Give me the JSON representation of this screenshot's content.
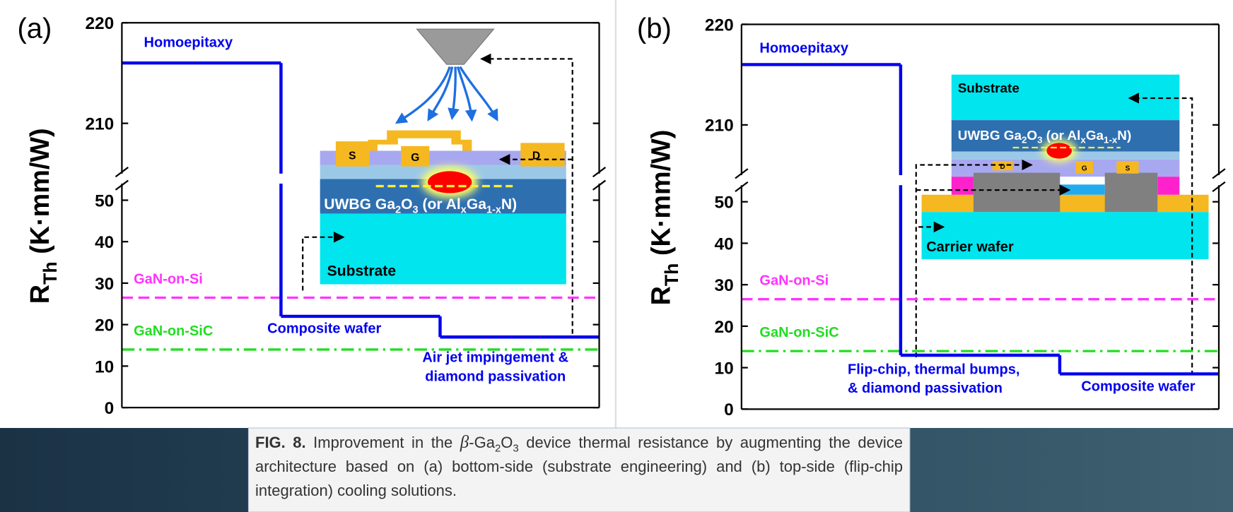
{
  "chart_data": [
    {
      "type": "step",
      "panel_label": "(a)",
      "ylabel": [
        "R",
        "Th",
        " (K·mm/W)"
      ],
      "ylim": [
        0,
        220
      ],
      "ybreak": [
        54,
        205
      ],
      "yticks": [
        0,
        10,
        20,
        30,
        40,
        50,
        210,
        220
      ],
      "series": [
        {
          "color": "#0000ee",
          "values": [
            216,
            22,
            17
          ]
        }
      ],
      "stage_labels": [
        [
          "Homoepitaxy"
        ],
        [
          "Composite wafer"
        ],
        [
          "Air jet impingement &",
          "diamond passivation"
        ]
      ],
      "reference_lines": [
        {
          "name": "GaN-on-Si",
          "value": 26.5,
          "color": "#ff33ff",
          "style": "dashed"
        },
        {
          "name": "GaN-on-SiC",
          "value": 14,
          "color": "#22dd22",
          "style": "dashdot"
        }
      ],
      "inset_labels": {
        "source": "S",
        "gate": "G",
        "drain": "D",
        "substrate": "Substrate",
        "channel": [
          "UWBG Ga",
          "2",
          "O",
          "3",
          " (or Al",
          "x",
          "Ga",
          "1-x",
          "N)"
        ]
      }
    },
    {
      "type": "step",
      "panel_label": "(b)",
      "ylabel": [
        "R",
        "Th",
        " (K·mm/W)"
      ],
      "ylim": [
        0,
        220
      ],
      "ybreak": [
        54,
        205
      ],
      "yticks": [
        0,
        10,
        20,
        30,
        40,
        50,
        210,
        220
      ],
      "series": [
        {
          "color": "#0000ee",
          "values": [
            216,
            13,
            8.5
          ]
        }
      ],
      "stage_labels": [
        [
          "Homoepitaxy"
        ],
        [
          "Flip-chip, thermal bumps,",
          "& diamond passivation"
        ],
        [
          "Composite wafer"
        ]
      ],
      "reference_lines": [
        {
          "name": "GaN-on-Si",
          "value": 26.5,
          "color": "#ff33ff",
          "style": "dashed"
        },
        {
          "name": "GaN-on-SiC",
          "value": 14,
          "color": "#22dd22",
          "style": "dashdot"
        }
      ],
      "inset_labels": {
        "source": "S",
        "gate": "G",
        "drain": "D",
        "substrate": "Substrate",
        "carrier": "Carrier wafer",
        "channel": [
          "UWBG Ga",
          "2",
          "O",
          "3",
          " (or Al",
          "x",
          "Ga",
          "1-x",
          "N)"
        ]
      }
    }
  ],
  "caption": {
    "label": "FIG. 8.",
    "text": [
      " Improvement in the ",
      "β",
      "-Ga",
      "2",
      "O",
      "3",
      " device thermal resistance by augmenting the device architecture based on (a) bottom-side (substrate engineering) and (b) top-side (flip-chip integration) cooling solutions."
    ]
  }
}
